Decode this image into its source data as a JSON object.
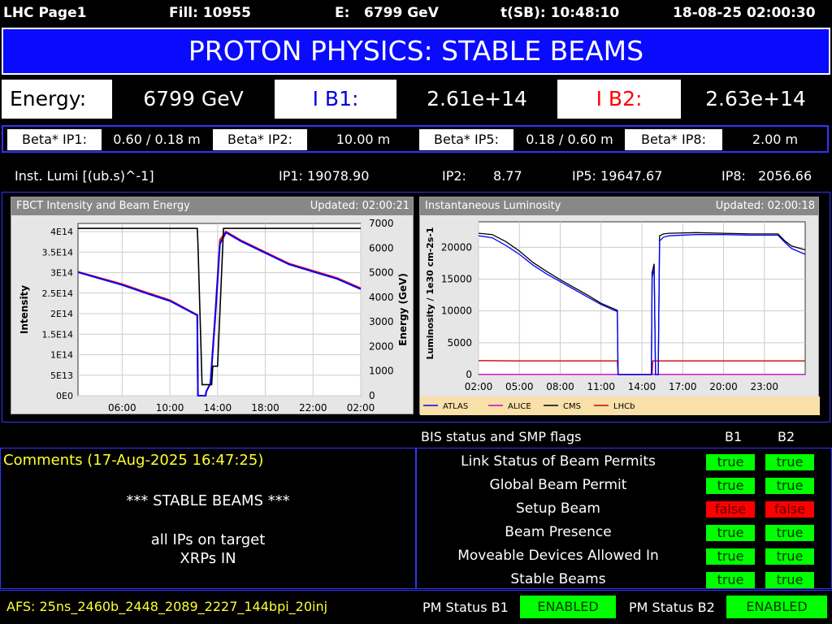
{
  "topbar": {
    "page": "LHC Page1",
    "fill": "Fill: 10955",
    "energy_label": "E:",
    "energy_value": "6799 GeV",
    "tsb": "t(SB): 10:48:10",
    "datetime": "18-08-25 02:00:30"
  },
  "banner": "PROTON PHYSICS: STABLE BEAMS",
  "energy_row": {
    "energy_label": "Energy:",
    "energy_value": "6799 GeV",
    "ib1_label": "I B1:",
    "ib1_value": "2.61e+14",
    "ib2_label": "I B2:",
    "ib2_value": "2.63e+14",
    "ib1_color": "#0000dd",
    "ib2_color": "#ff0000"
  },
  "beta": {
    "ip1_label": "Beta* IP1:",
    "ip1_value": "0.60 / 0.18 m",
    "ip2_label": "Beta* IP2:",
    "ip2_value": "10.00 m",
    "ip5_label": "Beta* IP5:",
    "ip5_value": "0.18 / 0.60 m",
    "ip8_label": "Beta* IP8:",
    "ip8_value": "2.00 m"
  },
  "lumi": {
    "label": "Inst. Lumi [(ub.s)^-1]",
    "ip1": "IP1: 19078.90",
    "ip2_label": "IP2:",
    "ip2_value": "8.77",
    "ip5": "IP5: 19647.67",
    "ip8_label": "IP8:",
    "ip8_value": "2056.66"
  },
  "chart_data": [
    {
      "type": "line",
      "title": "FBCT Intensity and Beam Energy",
      "updated": "Updated: 02:00:21",
      "ylabel": "Intensity",
      "y2label": "Energy (GeV)",
      "x_ticks": [
        "06:00",
        "10:00",
        "14:00",
        "18:00",
        "22:00",
        "02:00"
      ],
      "y_ticks": [
        "0E0",
        "5E13",
        "1E14",
        "1.5E14",
        "2E14",
        "2.5E14",
        "3E14",
        "3.5E14",
        "4E14"
      ],
      "y2_ticks": [
        "0",
        "1000",
        "2000",
        "3000",
        "4000",
        "5000",
        "6000",
        "7000"
      ],
      "xlim_hours": [
        2.3,
        26
      ],
      "ylim": [
        0,
        420000000000000.0
      ],
      "y2lim": [
        0,
        7000
      ],
      "series": [
        {
          "color": "#ff0000",
          "axis": "left",
          "x": [
            2.3,
            6,
            8,
            10,
            12.3,
            12.35,
            13.0,
            13.05,
            13.4,
            13.8,
            14.2,
            14.7,
            16,
            20,
            24,
            26
          ],
          "y": [
            302000000000000.0,
            272000000000000.0,
            252000000000000.0,
            233000000000000.0,
            197000000000000.0,
            0,
            0,
            10000000000000.0,
            30000000000000.0,
            200000000000000.0,
            380000000000000.0,
            400000000000000.0,
            378000000000000.0,
            322000000000000.0,
            287000000000000.0,
            262000000000000.0
          ]
        },
        {
          "color": "#0000ff",
          "axis": "left",
          "x": [
            2.3,
            6,
            8,
            10,
            12.3,
            12.35,
            13.0,
            13.05,
            13.4,
            13.8,
            14.2,
            14.7,
            16,
            20,
            24,
            26
          ],
          "y": [
            301000000000000.0,
            270000000000000.0,
            250000000000000.0,
            231000000000000.0,
            196000000000000.0,
            0,
            0,
            10000000000000.0,
            30000000000000.0,
            190000000000000.0,
            370000000000000.0,
            398000000000000.0,
            376000000000000.0,
            320000000000000.0,
            285000000000000.0,
            260000000000000.0
          ]
        },
        {
          "color": "#000000",
          "axis": "right",
          "x": [
            2.3,
            12.3,
            12.35,
            12.7,
            12.9,
            13.1,
            13.5,
            13.6,
            14.0,
            14.5,
            14.8,
            26
          ],
          "y": [
            6800,
            6800,
            6200,
            450,
            450,
            450,
            450,
            1200,
            1200,
            6800,
            6800,
            6800
          ]
        }
      ]
    },
    {
      "type": "line",
      "title": "Instantaneous Luminosity",
      "updated": "Updated: 02:00:18",
      "ylabel": "Luminosity / 1e30 cm-2s-1",
      "x_ticks": [
        "05:00",
        "08:00",
        "11:00",
        "14:00",
        "17:00",
        "20:00",
        "23:00",
        "02:00"
      ],
      "y_ticks": [
        "0",
        "5000",
        "10000",
        "15000",
        "20000"
      ],
      "xlim_hours": [
        2,
        26
      ],
      "ylim": [
        0,
        24000
      ],
      "legend": [
        "ATLAS",
        "ALICE",
        "CMS",
        "LHCb"
      ],
      "series": [
        {
          "name": "ATLAS",
          "color": "#0000ff",
          "x": [
            2,
            3,
            4,
            5,
            6,
            7,
            8,
            9,
            10,
            11,
            12.2,
            12.25,
            13.5,
            14.7,
            14.75,
            14.9,
            15.0,
            15.2,
            15.3,
            15.6,
            16,
            18,
            20,
            22,
            24,
            24.5,
            25,
            26
          ],
          "y": [
            21800,
            21500,
            20300,
            18900,
            17200,
            15800,
            14600,
            13400,
            12200,
            11000,
            9900,
            0,
            0,
            0,
            15200,
            16800,
            0,
            0,
            21000,
            21600,
            21800,
            22000,
            22000,
            21900,
            21900,
            20800,
            19800,
            18900
          ]
        },
        {
          "name": "CMS",
          "color": "#000000",
          "x": [
            2,
            3,
            4,
            5,
            6,
            7,
            8,
            9,
            10,
            11,
            12.2,
            12.25,
            13.5,
            14.7,
            14.75,
            14.9,
            15.0,
            15.2,
            15.3,
            15.6,
            16,
            18,
            20,
            22,
            24,
            24.5,
            25,
            26
          ],
          "y": [
            22200,
            22000,
            20900,
            19400,
            17600,
            16200,
            14900,
            13700,
            12500,
            11200,
            10100,
            0,
            0,
            0,
            16000,
            17400,
            0,
            0,
            21800,
            22100,
            22200,
            22300,
            22200,
            22100,
            22100,
            21000,
            20200,
            19600
          ]
        },
        {
          "name": "LHCb",
          "color": "#cc0000",
          "x": [
            2,
            5,
            8,
            11,
            12.2,
            12.25,
            14.75,
            14.8,
            17,
            20,
            23,
            26
          ],
          "y": [
            2200,
            2150,
            2150,
            2150,
            2150,
            0,
            0,
            2150,
            2150,
            2150,
            2150,
            2150
          ]
        },
        {
          "name": "ALICE",
          "color": "#cc00cc",
          "x": [
            2,
            26
          ],
          "y": [
            20,
            20
          ]
        }
      ]
    }
  ],
  "bis": {
    "title": "BIS status and SMP flags",
    "col_b1": "B1",
    "col_b2": "B2",
    "rows": [
      {
        "label": "Link Status of Beam Permits",
        "b1": "true",
        "b2": "true"
      },
      {
        "label": "Global Beam Permit",
        "b1": "true",
        "b2": "true"
      },
      {
        "label": "Setup Beam",
        "b1": "false",
        "b2": "false"
      },
      {
        "label": "Beam Presence",
        "b1": "true",
        "b2": "true"
      },
      {
        "label": "Moveable Devices Allowed In",
        "b1": "true",
        "b2": "true"
      },
      {
        "label": "Stable Beams",
        "b1": "true",
        "b2": "true"
      }
    ]
  },
  "comments": {
    "header": "Comments (17-Aug-2025 16:47:25)",
    "line1": "*** STABLE BEAMS ***",
    "line2": "all IPs on target",
    "line3": "XRPs IN"
  },
  "footer": {
    "afs": "AFS: 25ns_2460b_2448_2089_2227_144bpi_20inj",
    "pm_b1_label": "PM Status B1",
    "pm_b1_value": "ENABLED",
    "pm_b2_label": "PM Status B2",
    "pm_b2_value": "ENABLED"
  }
}
